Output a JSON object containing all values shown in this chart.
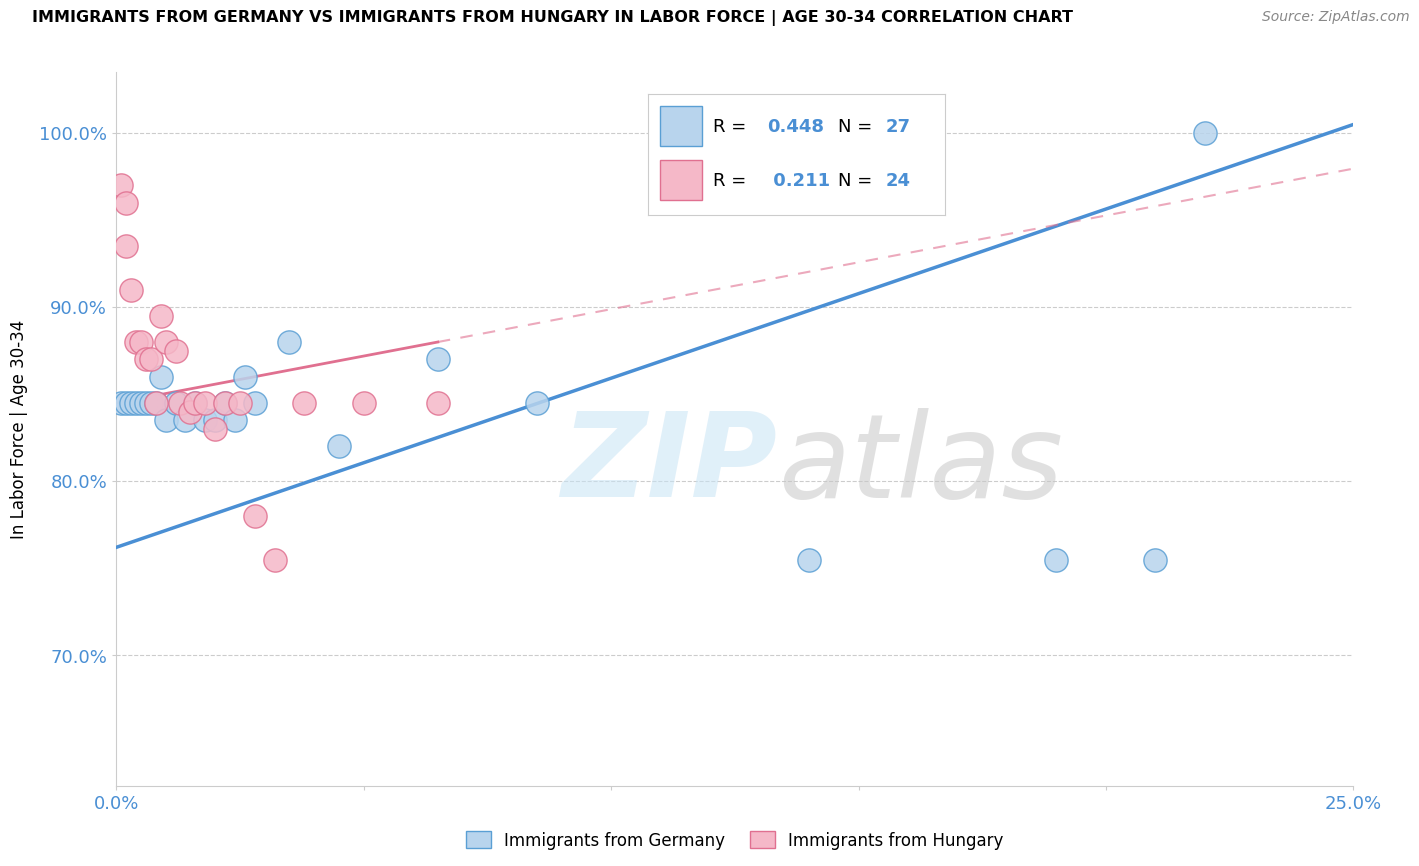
{
  "title": "IMMIGRANTS FROM GERMANY VS IMMIGRANTS FROM HUNGARY IN LABOR FORCE | AGE 30-34 CORRELATION CHART",
  "source": "Source: ZipAtlas.com",
  "ylabel": "In Labor Force | Age 30-34",
  "xlim": [
    0.0,
    0.25
  ],
  "ylim": [
    0.625,
    1.035
  ],
  "yticks": [
    0.7,
    0.8,
    0.9,
    1.0
  ],
  "ytick_labels": [
    "70.0%",
    "80.0%",
    "90.0%",
    "100.0%"
  ],
  "xticks": [
    0.0,
    0.05,
    0.1,
    0.15,
    0.2,
    0.25
  ],
  "xtick_labels": [
    "0.0%",
    "",
    "",
    "",
    "",
    "25.0%"
  ],
  "germany_R": 0.448,
  "germany_N": 27,
  "hungary_R": 0.211,
  "hungary_N": 24,
  "germany_color": "#b8d4ed",
  "hungary_color": "#f5b8c8",
  "germany_edge_color": "#5a9fd4",
  "hungary_edge_color": "#e07090",
  "germany_line_color": "#4a8fd4",
  "hungary_line_color": "#e07090",
  "axis_color": "#4a8fd4",
  "germany_scatter_x": [
    0.001,
    0.002,
    0.003,
    0.004,
    0.005,
    0.006,
    0.007,
    0.008,
    0.009,
    0.01,
    0.012,
    0.014,
    0.016,
    0.018,
    0.02,
    0.022,
    0.024,
    0.026,
    0.028,
    0.035,
    0.045,
    0.065,
    0.085,
    0.14,
    0.19,
    0.21,
    0.22
  ],
  "germany_scatter_y": [
    0.845,
    0.845,
    0.845,
    0.845,
    0.845,
    0.845,
    0.845,
    0.845,
    0.86,
    0.835,
    0.845,
    0.835,
    0.845,
    0.835,
    0.835,
    0.845,
    0.835,
    0.86,
    0.845,
    0.88,
    0.82,
    0.87,
    0.845,
    0.755,
    0.755,
    0.755,
    1.0
  ],
  "hungary_scatter_x": [
    0.001,
    0.002,
    0.002,
    0.003,
    0.004,
    0.005,
    0.006,
    0.007,
    0.008,
    0.009,
    0.01,
    0.012,
    0.013,
    0.015,
    0.016,
    0.018,
    0.02,
    0.022,
    0.025,
    0.028,
    0.032,
    0.038,
    0.05,
    0.065
  ],
  "hungary_scatter_y": [
    0.97,
    0.96,
    0.935,
    0.91,
    0.88,
    0.88,
    0.87,
    0.87,
    0.845,
    0.895,
    0.88,
    0.875,
    0.845,
    0.84,
    0.845,
    0.845,
    0.83,
    0.845,
    0.845,
    0.78,
    0.755,
    0.845,
    0.845,
    0.845
  ]
}
